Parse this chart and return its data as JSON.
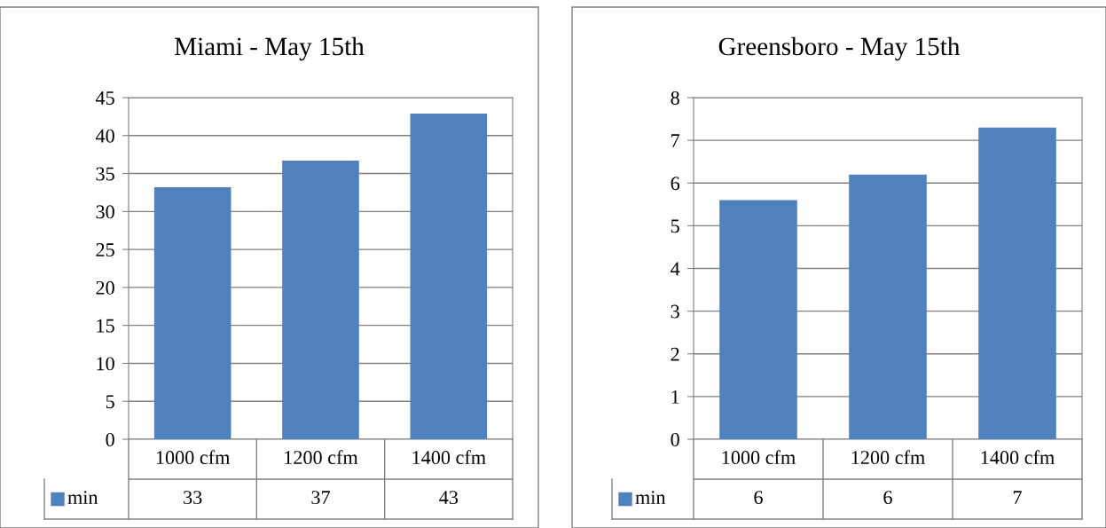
{
  "chart_data": [
    {
      "type": "bar",
      "title": "Miami - May 15th",
      "categories": [
        "1000 cfm",
        "1200 cfm",
        "1400 cfm"
      ],
      "series": [
        {
          "name": "min",
          "color": "#4f81bd",
          "values": [
            33.2,
            36.7,
            42.9
          ],
          "value_labels": [
            "33",
            "37",
            "43"
          ]
        }
      ],
      "ylim": [
        0,
        45
      ],
      "yticks": [
        0,
        5,
        10,
        15,
        20,
        25,
        30,
        35,
        40,
        45
      ],
      "grid": "y",
      "legend": "bottom"
    },
    {
      "type": "bar",
      "title": "Greensboro - May 15th",
      "categories": [
        "1000 cfm",
        "1200 cfm",
        "1400 cfm"
      ],
      "series": [
        {
          "name": "min",
          "color": "#4f81bd",
          "values": [
            5.6,
            6.2,
            7.3
          ],
          "value_labels": [
            "6",
            "6",
            "7"
          ]
        }
      ],
      "ylim": [
        0,
        8
      ],
      "yticks": [
        0,
        1,
        2,
        3,
        4,
        5,
        6,
        7,
        8
      ],
      "grid": "y",
      "legend": "bottom"
    }
  ]
}
